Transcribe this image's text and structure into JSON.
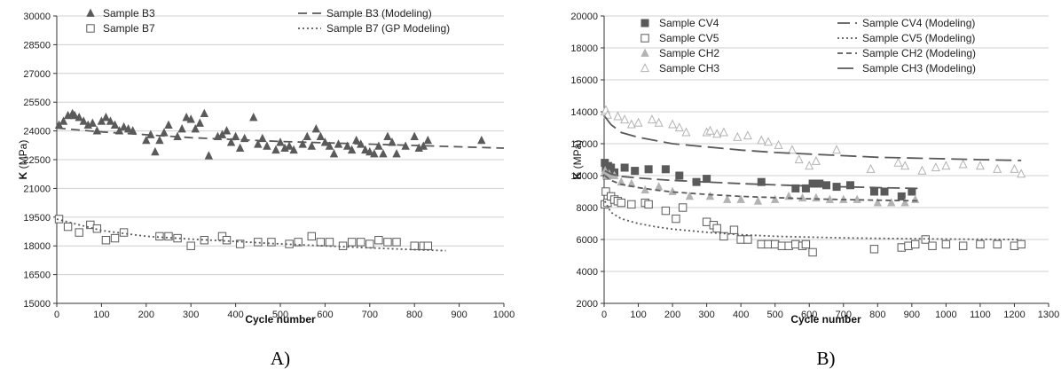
{
  "colors": {
    "dark": "#5a5a5a",
    "light": "#b3b3b3",
    "axis": "#333333",
    "grid": "#d0d0d0"
  },
  "chart_data": [
    {
      "panel_label": "A)",
      "type": "scatter",
      "xlabel": "Cycle number",
      "ylabel": "K",
      "ylabel_unit": "(MPa)",
      "xlim": [
        0,
        1000
      ],
      "ylim": [
        15000,
        30000
      ],
      "xticks": [
        0,
        100,
        200,
        300,
        400,
        500,
        600,
        700,
        800,
        900,
        1000
      ],
      "yticks": [
        15000,
        16500,
        18000,
        19500,
        21000,
        22500,
        24000,
        25500,
        27000,
        28500,
        30000
      ],
      "grid": "horizontal",
      "legend_position": "top",
      "series": [
        {
          "name": "Sample B3",
          "kind": "scatter",
          "marker": "triangle-filled",
          "color": "dark",
          "x": [
            5,
            15,
            25,
            35,
            40,
            50,
            60,
            70,
            80,
            90,
            100,
            110,
            120,
            130,
            140,
            150,
            160,
            170,
            200,
            210,
            220,
            230,
            240,
            250,
            270,
            280,
            290,
            300,
            310,
            320,
            330,
            340,
            360,
            370,
            380,
            390,
            400,
            410,
            420,
            440,
            450,
            460,
            470,
            490,
            500,
            510,
            520,
            530,
            550,
            560,
            570,
            580,
            590,
            600,
            610,
            620,
            630,
            650,
            660,
            670,
            680,
            690,
            700,
            710,
            720,
            730,
            740,
            750,
            760,
            780,
            800,
            810,
            820,
            830,
            950
          ],
          "y": [
            24300,
            24500,
            24800,
            24900,
            24800,
            24700,
            24500,
            24300,
            24400,
            24000,
            24500,
            24700,
            24500,
            24300,
            24000,
            24200,
            24100,
            24000,
            23500,
            23800,
            22900,
            23500,
            23900,
            24300,
            23700,
            24100,
            24700,
            24600,
            24100,
            24400,
            24900,
            22700,
            23700,
            23800,
            24000,
            23400,
            23700,
            23100,
            23600,
            24700,
            23300,
            23600,
            23200,
            23000,
            23400,
            23100,
            23200,
            23000,
            23300,
            23700,
            23200,
            24100,
            23700,
            23400,
            23200,
            22800,
            23300,
            23200,
            23000,
            23500,
            23300,
            23000,
            22900,
            22800,
            23200,
            22800,
            23700,
            23400,
            22800,
            23200,
            23700,
            23100,
            23200,
            23500,
            23500
          ]
        },
        {
          "name": "Sample B7",
          "kind": "scatter",
          "marker": "square-open",
          "color": "dark",
          "x": [
            5,
            25,
            50,
            75,
            90,
            110,
            130,
            150,
            230,
            250,
            270,
            300,
            330,
            370,
            380,
            410,
            450,
            480,
            520,
            540,
            570,
            590,
            610,
            640,
            660,
            680,
            700,
            720,
            740,
            760,
            800,
            820,
            830
          ],
          "y": [
            19400,
            19000,
            18700,
            19100,
            18900,
            18300,
            18400,
            18700,
            18500,
            18500,
            18400,
            18000,
            18300,
            18500,
            18300,
            18100,
            18200,
            18200,
            18100,
            18200,
            18500,
            18200,
            18200,
            18000,
            18200,
            18200,
            18100,
            18300,
            18200,
            18200,
            18000,
            18000,
            18000
          ]
        },
        {
          "name": "Sample B3 (Modeling)",
          "kind": "line",
          "dash": "10,6",
          "color": "dark",
          "x": [
            0,
            100,
            200,
            300,
            400,
            500,
            600,
            700,
            800,
            900,
            1000
          ],
          "y": [
            24150,
            23950,
            23800,
            23650,
            23550,
            23450,
            23380,
            23310,
            23240,
            23170,
            23100
          ]
        },
        {
          "name": "Sample B7 (GP Modeling)",
          "kind": "line",
          "dash": "2,3",
          "color": "dark",
          "x": [
            0,
            100,
            200,
            300,
            400,
            500,
            600,
            700,
            800,
            870
          ],
          "y": [
            19400,
            18800,
            18500,
            18350,
            18230,
            18100,
            18000,
            17900,
            17800,
            17750
          ]
        }
      ]
    },
    {
      "panel_label": "B)",
      "type": "scatter",
      "xlabel": "Cycle number",
      "ylabel": "K",
      "ylabel_unit": "(MPa)",
      "xlim": [
        0,
        1300
      ],
      "ylim": [
        2000,
        20000
      ],
      "xticks": [
        0,
        100,
        200,
        300,
        400,
        500,
        600,
        700,
        800,
        900,
        1000,
        1100,
        1200,
        1300
      ],
      "yticks": [
        2000,
        4000,
        6000,
        8000,
        10000,
        12000,
        14000,
        16000,
        18000,
        20000
      ],
      "grid": "horizontal",
      "legend_position": "top",
      "series": [
        {
          "name": "Sample CV4",
          "kind": "scatter",
          "marker": "square-filled",
          "color": "dark",
          "x": [
            2,
            5,
            8,
            12,
            20,
            30,
            60,
            90,
            130,
            180,
            220,
            270,
            300,
            460,
            560,
            590,
            610,
            630,
            650,
            680,
            720,
            790,
            820,
            870,
            900
          ],
          "y": [
            10800,
            10400,
            10000,
            10600,
            10500,
            10200,
            10500,
            10300,
            10400,
            10400,
            10000,
            9600,
            9800,
            9600,
            9200,
            9200,
            9500,
            9500,
            9400,
            9300,
            9400,
            9000,
            9000,
            8700,
            9000
          ]
        },
        {
          "name": "Sample CV5",
          "kind": "scatter",
          "marker": "square-open",
          "color": "dark",
          "x": [
            2,
            5,
            10,
            20,
            30,
            40,
            50,
            80,
            120,
            130,
            180,
            210,
            230,
            300,
            320,
            330,
            350,
            380,
            400,
            420,
            460,
            480,
            500,
            520,
            540,
            560,
            580,
            590,
            610,
            790,
            870,
            890,
            910,
            940,
            960,
            1000,
            1050,
            1100,
            1150,
            1200,
            1220
          ],
          "y": [
            8200,
            9000,
            8300,
            8700,
            8500,
            8400,
            8300,
            8200,
            8300,
            8200,
            7800,
            7300,
            8000,
            7100,
            6900,
            6700,
            6200,
            6600,
            6000,
            6000,
            5700,
            5700,
            5700,
            5600,
            5600,
            5700,
            5600,
            5700,
            5200,
            5400,
            5500,
            5600,
            5700,
            6000,
            5600,
            5700,
            5600,
            5700,
            5700,
            5600,
            5700
          ]
        },
        {
          "name": "Sample CH2",
          "kind": "scatter",
          "marker": "triangle-filled",
          "color": "light",
          "x": [
            3,
            8,
            15,
            30,
            50,
            80,
            120,
            160,
            200,
            250,
            310,
            360,
            400,
            450,
            500,
            540,
            580,
            620,
            660,
            700,
            740,
            800,
            840,
            880,
            910
          ],
          "y": [
            10300,
            10000,
            10100,
            10000,
            9600,
            9500,
            9100,
            9300,
            9000,
            8700,
            8700,
            8500,
            8500,
            8400,
            8500,
            8700,
            8600,
            8600,
            8500,
            8500,
            8500,
            8300,
            8300,
            8300,
            8500
          ]
        },
        {
          "name": "Sample CH3",
          "kind": "scatter",
          "marker": "triangle-open",
          "color": "light",
          "x": [
            2,
            5,
            10,
            40,
            60,
            80,
            100,
            140,
            160,
            200,
            220,
            240,
            300,
            310,
            330,
            350,
            390,
            420,
            460,
            480,
            510,
            550,
            570,
            600,
            620,
            680,
            780,
            860,
            880,
            930,
            970,
            1000,
            1050,
            1100,
            1150,
            1200,
            1220
          ],
          "y": [
            14000,
            14100,
            13800,
            13700,
            13500,
            13200,
            13300,
            13500,
            13300,
            13200,
            13000,
            12700,
            12700,
            12800,
            12600,
            12700,
            12400,
            12500,
            12200,
            12100,
            11900,
            11600,
            11000,
            10600,
            10900,
            11600,
            10400,
            10800,
            10600,
            10300,
            10500,
            10600,
            10700,
            10600,
            10400,
            10400,
            10100
          ]
        },
        {
          "name": "Sample CV4 (Modeling)",
          "kind": "line",
          "dash": "14,6",
          "color": "dark",
          "x": [
            2,
            20,
            50,
            100,
            150,
            200,
            300,
            400,
            500,
            600,
            700,
            800,
            920
          ],
          "y": [
            10300,
            10100,
            9950,
            9850,
            9770,
            9700,
            9600,
            9500,
            9420,
            9350,
            9300,
            9250,
            9200
          ]
        },
        {
          "name": "Sample CV5 (Modeling)",
          "kind": "line",
          "dash": "2,3",
          "color": "dark",
          "x": [
            2,
            20,
            50,
            100,
            150,
            200,
            300,
            400,
            500,
            600,
            700,
            800,
            900,
            1000,
            1100,
            1220
          ],
          "y": [
            8400,
            7700,
            7300,
            7000,
            6800,
            6650,
            6450,
            6300,
            6200,
            6150,
            6100,
            6070,
            6050,
            6030,
            6010,
            6000
          ]
        },
        {
          "name": "Sample CH2 (Modeling)",
          "kind": "line",
          "dash": "6,4",
          "color": "dark",
          "x": [
            2,
            20,
            50,
            100,
            150,
            200,
            300,
            400,
            500,
            600,
            700,
            800,
            920
          ],
          "y": [
            10000,
            9700,
            9450,
            9250,
            9100,
            8980,
            8820,
            8700,
            8620,
            8550,
            8500,
            8460,
            8420
          ]
        },
        {
          "name": "Sample CH3 (Modeling)",
          "kind": "line",
          "dash": "18,7",
          "color": "dark",
          "x": [
            2,
            20,
            50,
            100,
            200,
            300,
            400,
            500,
            600,
            700,
            800,
            900,
            1000,
            1100,
            1220
          ],
          "y": [
            13700,
            13200,
            12700,
            12400,
            12000,
            11800,
            11600,
            11450,
            11350,
            11250,
            11150,
            11100,
            11050,
            11000,
            10950
          ]
        }
      ]
    }
  ]
}
